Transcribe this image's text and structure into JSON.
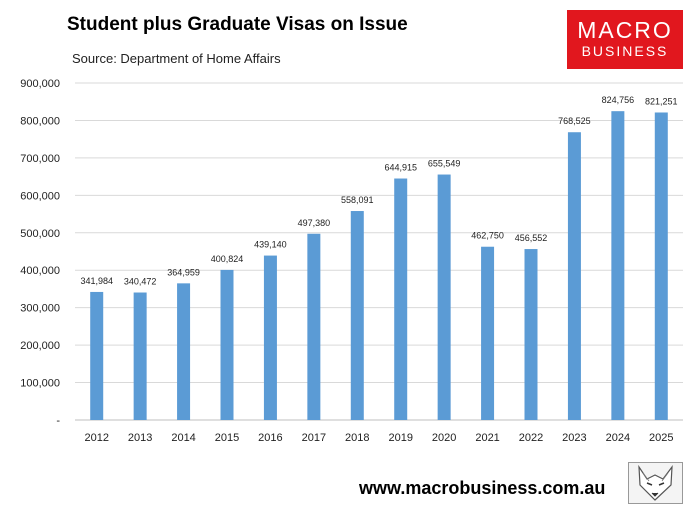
{
  "chart_data": {
    "type": "bar",
    "title": "Student plus Graduate Visas on Issue",
    "subtitle": "Source: Department of Home Affairs",
    "categories": [
      "2012",
      "2013",
      "2014",
      "2015",
      "2016",
      "2017",
      "2018",
      "2019",
      "2020",
      "2021",
      "2022",
      "2023",
      "2024",
      "2025"
    ],
    "values": [
      341984,
      340472,
      364959,
      400824,
      439140,
      497380,
      558091,
      644915,
      655549,
      462750,
      456552,
      768525,
      824756,
      821251
    ],
    "value_labels": [
      "341,984",
      "340,472",
      "364,959",
      "400,824",
      "439,140",
      "497,380",
      "558,091",
      "644,915",
      "655,549",
      "462,750",
      "456,552",
      "768,525",
      "824,756",
      "821,251"
    ],
    "y_ticks": [
      0,
      100000,
      200000,
      300000,
      400000,
      500000,
      600000,
      700000,
      800000,
      900000
    ],
    "y_tick_labels": [
      "-",
      "100,000",
      "200,000",
      "300,000",
      "400,000",
      "500,000",
      "600,000",
      "700,000",
      "800,000",
      "900,000"
    ],
    "ylim": [
      0,
      900000
    ],
    "grid": true,
    "bar_color": "#5b9bd5",
    "grid_color": "#d9d9d9"
  },
  "branding": {
    "logo_top": "MACRO",
    "logo_bottom": "BUSINESS",
    "logo_color": "#e1171e",
    "website": "www.macrobusiness.com.au",
    "mascot_icon": "fox-icon"
  }
}
